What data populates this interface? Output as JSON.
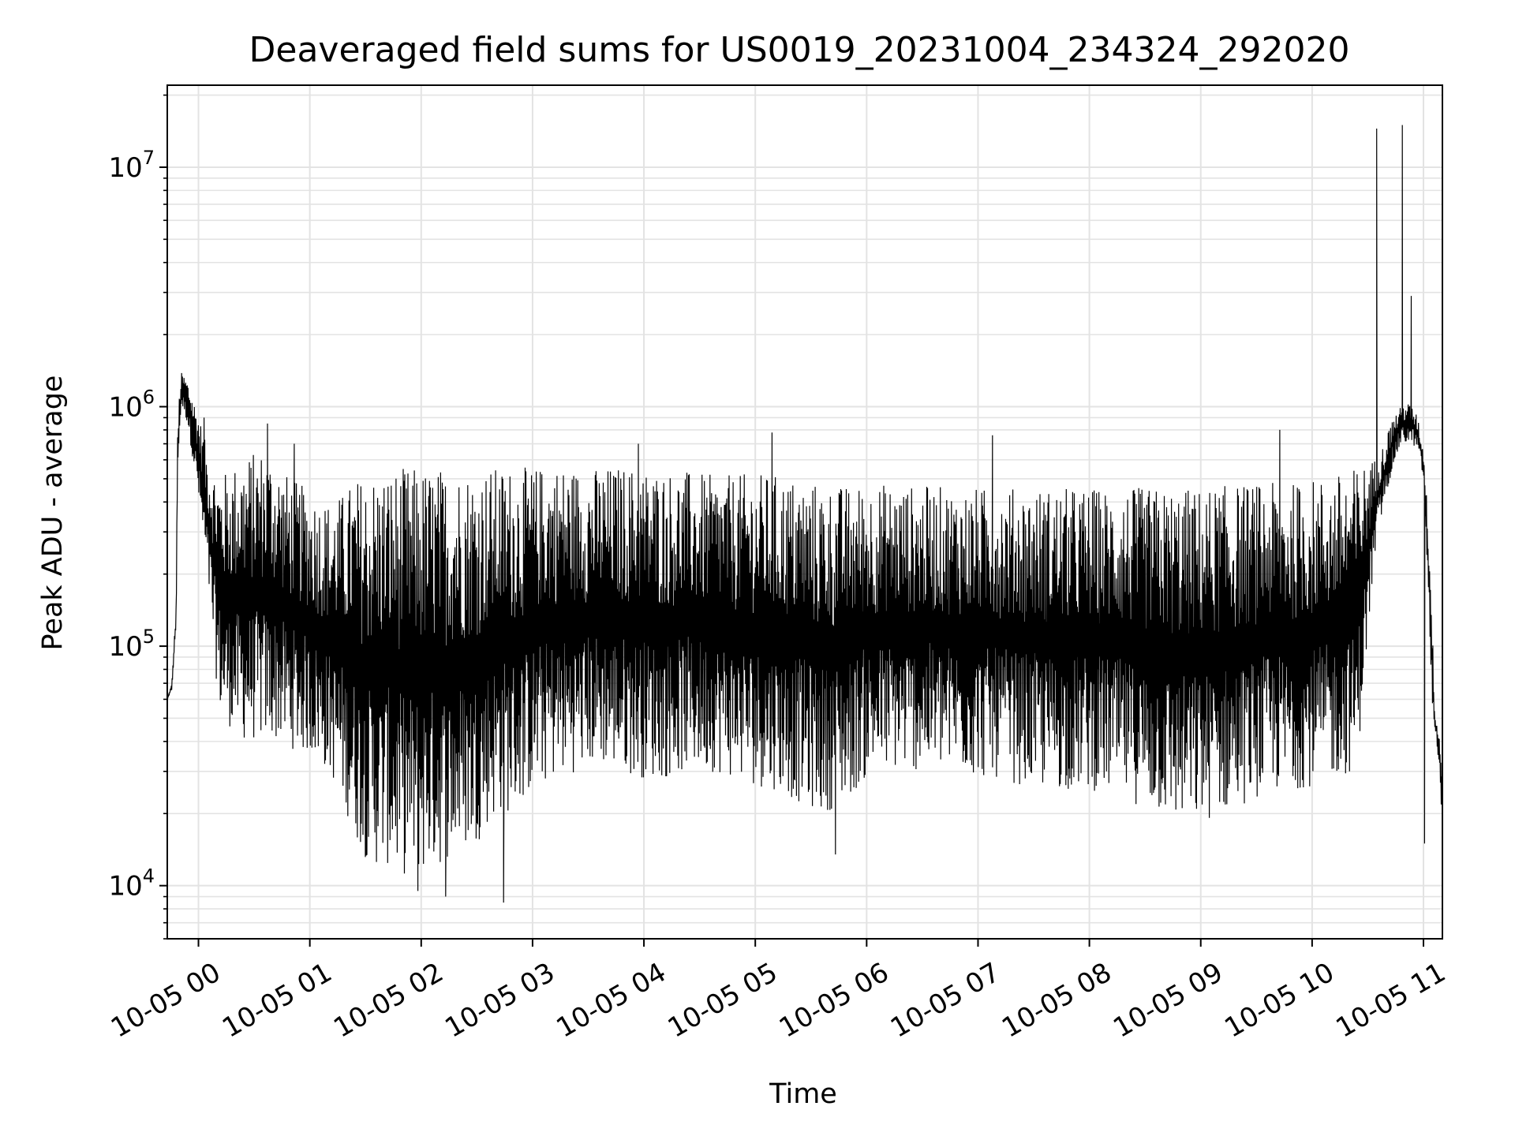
{
  "chart_data": {
    "type": "line",
    "title": "Deaveraged field sums for US0019_20231004_234324_292020",
    "xlabel": "Time",
    "ylabel": "Peak ADU - average",
    "yscale": "log",
    "grid": true,
    "line_color": "#000000",
    "grid_color": "#e3e3e3",
    "x_ticks": [
      "10-05 00",
      "10-05 01",
      "10-05 02",
      "10-05 03",
      "10-05 04",
      "10-05 05",
      "10-05 06",
      "10-05 07",
      "10-05 08",
      "10-05 09",
      "10-05 10",
      "10-05 11"
    ],
    "x_tick_hours": [
      0,
      1,
      2,
      3,
      4,
      5,
      6,
      7,
      8,
      9,
      10,
      11
    ],
    "xlim_hours": [
      -0.28,
      11.17
    ],
    "y_ticks": [
      {
        "value": 10000,
        "base": "10",
        "exp": "4"
      },
      {
        "value": 100000,
        "base": "10",
        "exp": "5"
      },
      {
        "value": 1000000,
        "base": "10",
        "exp": "6"
      },
      {
        "value": 10000000,
        "base": "10",
        "exp": "7"
      }
    ],
    "ylim": [
      6000,
      22000000
    ],
    "series": [
      {
        "x_hours": [
          -0.28,
          -0.24,
          -0.2,
          -0.19,
          -0.17,
          -0.15,
          -0.1,
          -0.05,
          0.0,
          0.05,
          0.1,
          0.15,
          0.2,
          0.3,
          0.4,
          0.5,
          0.6,
          0.7,
          0.8,
          0.9,
          1.0,
          1.1,
          1.2,
          1.3,
          1.4,
          1.5,
          1.6,
          1.7,
          1.8,
          1.9,
          2.0,
          2.1,
          2.2,
          2.3,
          2.4,
          2.5,
          2.6,
          2.7,
          2.8,
          2.9,
          3.0,
          3.2,
          3.4,
          3.6,
          3.8,
          4.0,
          4.2,
          4.4,
          4.6,
          4.8,
          5.0,
          5.2,
          5.4,
          5.6,
          5.8,
          6.0,
          6.2,
          6.4,
          6.6,
          6.8,
          7.0,
          7.2,
          7.4,
          7.6,
          7.8,
          8.0,
          8.2,
          8.4,
          8.6,
          8.8,
          9.0,
          9.2,
          9.4,
          9.6,
          9.8,
          10.0,
          10.2,
          10.4,
          10.55,
          10.6,
          10.65,
          10.7,
          10.75,
          10.8,
          10.85,
          10.9,
          10.95,
          11.0,
          11.02,
          11.05,
          11.08,
          11.1,
          11.12,
          11.14,
          11.17
        ],
        "y_env_high": [
          60000,
          70000,
          150000,
          700000,
          1200000,
          1400000,
          1300000,
          1100000,
          950000,
          750000,
          600000,
          550000,
          520000,
          560000,
          620000,
          650000,
          680000,
          600000,
          520000,
          480000,
          450000,
          420000,
          400000,
          440000,
          500000,
          520000,
          540000,
          560000,
          560000,
          560000,
          560000,
          560000,
          560000,
          560000,
          560000,
          550000,
          560000,
          560000,
          570000,
          560000,
          560000,
          580000,
          560000,
          560000,
          570000,
          560000,
          550000,
          540000,
          520000,
          520000,
          530000,
          520000,
          500000,
          480000,
          470000,
          480000,
          480000,
          470000,
          470000,
          460000,
          460000,
          460000,
          460000,
          460000,
          460000,
          460000,
          460000,
          460000,
          460000,
          460000,
          460000,
          470000,
          480000,
          480000,
          480000,
          500000,
          520000,
          560000,
          600000,
          650000,
          700000,
          850000,
          950000,
          1000000,
          1050000,
          1000000,
          900000,
          650000,
          500000,
          300000,
          120000,
          55000,
          48000,
          45000,
          30000
        ],
        "y_env_low": [
          60000,
          65000,
          120000,
          400000,
          800000,
          1000000,
          850000,
          600000,
          400000,
          250000,
          150000,
          80000,
          50000,
          45000,
          40000,
          40000,
          40000,
          40000,
          38000,
          36000,
          35000,
          32000,
          28000,
          22000,
          16000,
          13000,
          12000,
          12000,
          11000,
          11000,
          11000,
          12000,
          12000,
          13000,
          14000,
          15000,
          18000,
          20000,
          20000,
          22000,
          25000,
          28000,
          30000,
          32000,
          30000,
          28000,
          28000,
          30000,
          30000,
          28000,
          26000,
          25000,
          22000,
          20000,
          22000,
          28000,
          30000,
          30000,
          30000,
          30000,
          28000,
          28000,
          26000,
          25000,
          25000,
          25000,
          24000,
          22000,
          20000,
          18000,
          18000,
          20000,
          22000,
          24000,
          25000,
          26000,
          28000,
          30000,
          200000,
          300000,
          400000,
          500000,
          600000,
          700000,
          700000,
          700000,
          650000,
          500000,
          300000,
          120000,
          55000,
          45000,
          40000,
          30000,
          18000
        ],
        "spikes": [
          {
            "x_hour": 0.05,
            "y": 900000
          },
          {
            "x_hour": 0.62,
            "y": 850000
          },
          {
            "x_hour": 0.86,
            "y": 700000
          },
          {
            "x_hour": 2.74,
            "y": 8500
          },
          {
            "x_hour": 2.22,
            "y": 9000
          },
          {
            "x_hour": 1.97,
            "y": 9500
          },
          {
            "x_hour": 3.95,
            "y": 700000
          },
          {
            "x_hour": 5.15,
            "y": 780000
          },
          {
            "x_hour": 5.72,
            "y": 13500
          },
          {
            "x_hour": 7.13,
            "y": 760000
          },
          {
            "x_hour": 9.71,
            "y": 800000
          },
          {
            "x_hour": 10.58,
            "y": 14500000
          },
          {
            "x_hour": 10.81,
            "y": 15000000
          },
          {
            "x_hour": 10.89,
            "y": 2900000
          },
          {
            "x_hour": 11.01,
            "y": 15000
          }
        ]
      }
    ]
  }
}
